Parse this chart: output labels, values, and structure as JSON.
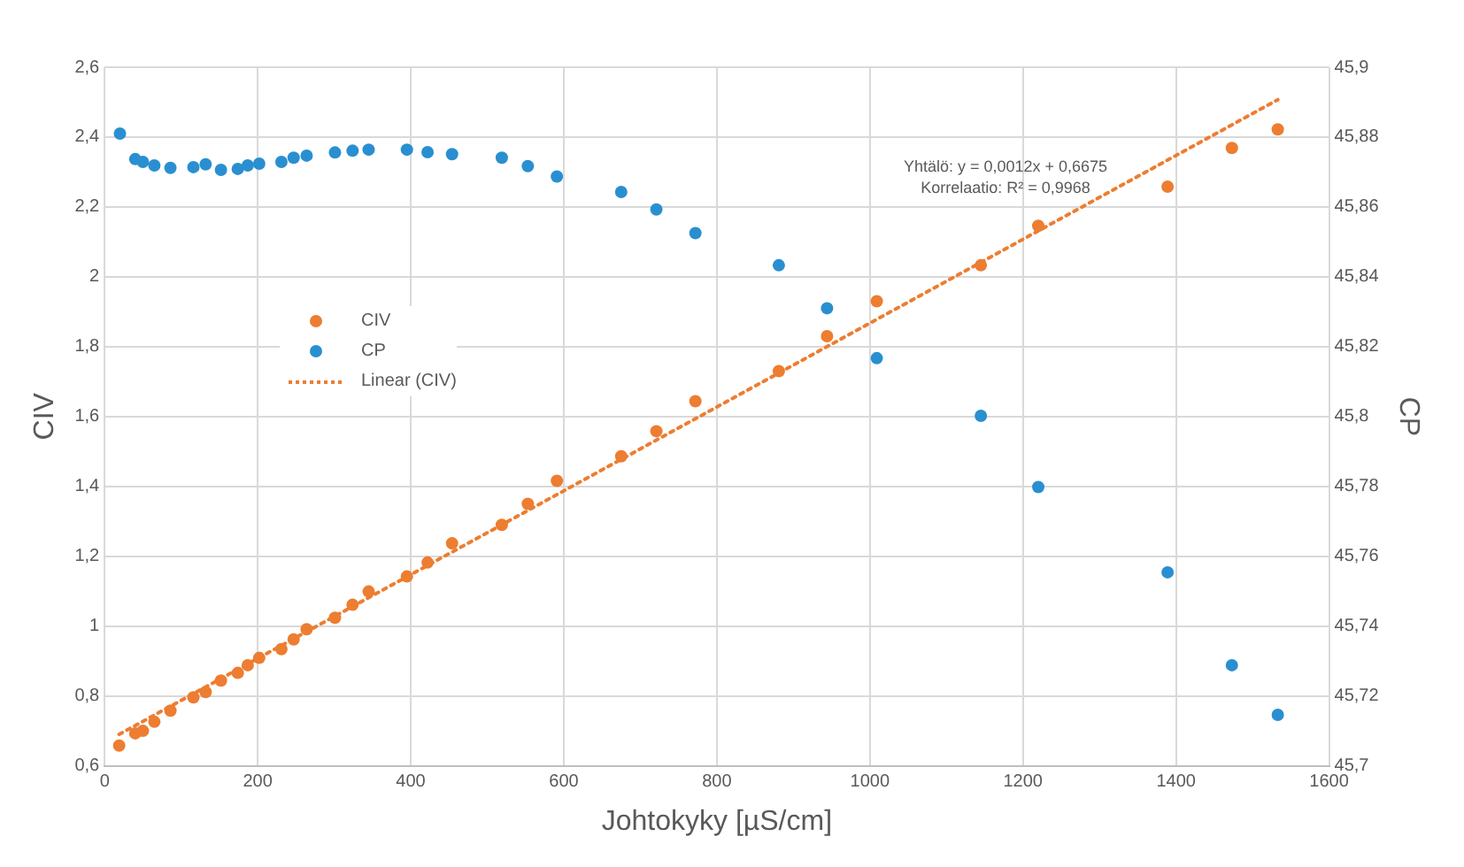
{
  "chart_data": {
    "type": "scatter",
    "xlabel": "Johtokyky [µS/cm]",
    "ylabel": "CIV",
    "y2label": "CP",
    "xlim": [
      0,
      1600
    ],
    "xticks": [
      0,
      200,
      400,
      600,
      800,
      1000,
      1200,
      1400,
      1600
    ],
    "ylim": [
      0.6,
      2.6
    ],
    "yticks": [
      {
        "value": 0.6,
        "label": "0,6"
      },
      {
        "value": 0.8,
        "label": "0,8"
      },
      1,
      {
        "value": 1.2,
        "label": "1,2"
      },
      {
        "value": 1.4,
        "label": "1,4"
      },
      {
        "value": 1.6,
        "label": "1,6"
      },
      {
        "value": 1.8,
        "label": "1,8"
      },
      2,
      {
        "value": 2.2,
        "label": "2,2"
      },
      {
        "value": 2.4,
        "label": "2,4"
      },
      {
        "value": 2.6,
        "label": "2,6"
      }
    ],
    "y2lim": [
      45.7,
      45.9
    ],
    "y2ticks": [
      {
        "value": 45.7,
        "label": "45,7"
      },
      {
        "value": 45.72,
        "label": "45,72"
      },
      {
        "value": 45.74,
        "label": "45,74"
      },
      {
        "value": 45.76,
        "label": "45,76"
      },
      {
        "value": 45.78,
        "label": "45,78"
      },
      {
        "value": 45.8,
        "label": "45,8"
      },
      {
        "value": 45.82,
        "label": "45,82"
      },
      {
        "value": 45.84,
        "label": "45,84"
      },
      {
        "value": 45.86,
        "label": "45,86"
      },
      {
        "value": 45.88,
        "label": "45,88"
      },
      {
        "value": 45.9,
        "label": "45,9"
      }
    ],
    "grid": true,
    "legend": "left",
    "marker": "circle",
    "annotations": [
      "Yhtälö: y = 0,0012x + 0,6675",
      "Korrelaatio: R² = 0,9968"
    ],
    "series": [
      {
        "name": "CIV",
        "color": "#ed7d31",
        "x": [
          19,
          40,
          50,
          65,
          86,
          116,
          132,
          152,
          174,
          187,
          202,
          231,
          247,
          264,
          301,
          324,
          345,
          395,
          422,
          454,
          519,
          553,
          591,
          675,
          721,
          772,
          881,
          944,
          1009,
          1145,
          1220,
          1389,
          1473,
          1533
        ],
        "values": [
          0.658,
          0.693,
          0.7,
          0.726,
          0.758,
          0.796,
          0.811,
          0.844,
          0.866,
          0.888,
          0.909,
          0.934,
          0.962,
          0.991,
          1.024,
          1.061,
          1.099,
          1.142,
          1.182,
          1.237,
          1.29,
          1.35,
          1.416,
          1.486,
          1.558,
          1.644,
          1.73,
          1.83,
          1.93,
          2.033,
          2.146,
          2.258,
          2.369,
          2.422
        ]
      },
      {
        "name": "CP",
        "color": "#2a8fd0",
        "axis": "y2",
        "x": [
          20,
          40,
          50,
          65,
          86,
          116,
          132,
          152,
          174,
          187,
          202,
          231,
          247,
          264,
          301,
          324,
          345,
          395,
          422,
          454,
          519,
          553,
          591,
          675,
          721,
          772,
          881,
          944,
          1009,
          1145,
          1220,
          1389,
          1473,
          1533
        ],
        "values": [
          45.881,
          45.8737,
          45.8729,
          45.8719,
          45.8712,
          45.8714,
          45.8722,
          45.8706,
          45.8709,
          45.8719,
          45.8724,
          45.8729,
          45.8741,
          45.8747,
          45.8756,
          45.8761,
          45.8764,
          45.8764,
          45.8757,
          45.8751,
          45.8741,
          45.8717,
          45.8687,
          45.8643,
          45.8593,
          45.8525,
          45.8433,
          45.831,
          45.8167,
          45.8002,
          45.7798,
          45.7554,
          45.7288,
          45.7146
        ]
      },
      {
        "name": "Linear (CIV)",
        "type": "line",
        "color": "#ed7d31",
        "line_style": "dotted",
        "marker": "none",
        "x": [
          19,
          1533
        ],
        "values": [
          0.69,
          2.507
        ]
      }
    ]
  }
}
